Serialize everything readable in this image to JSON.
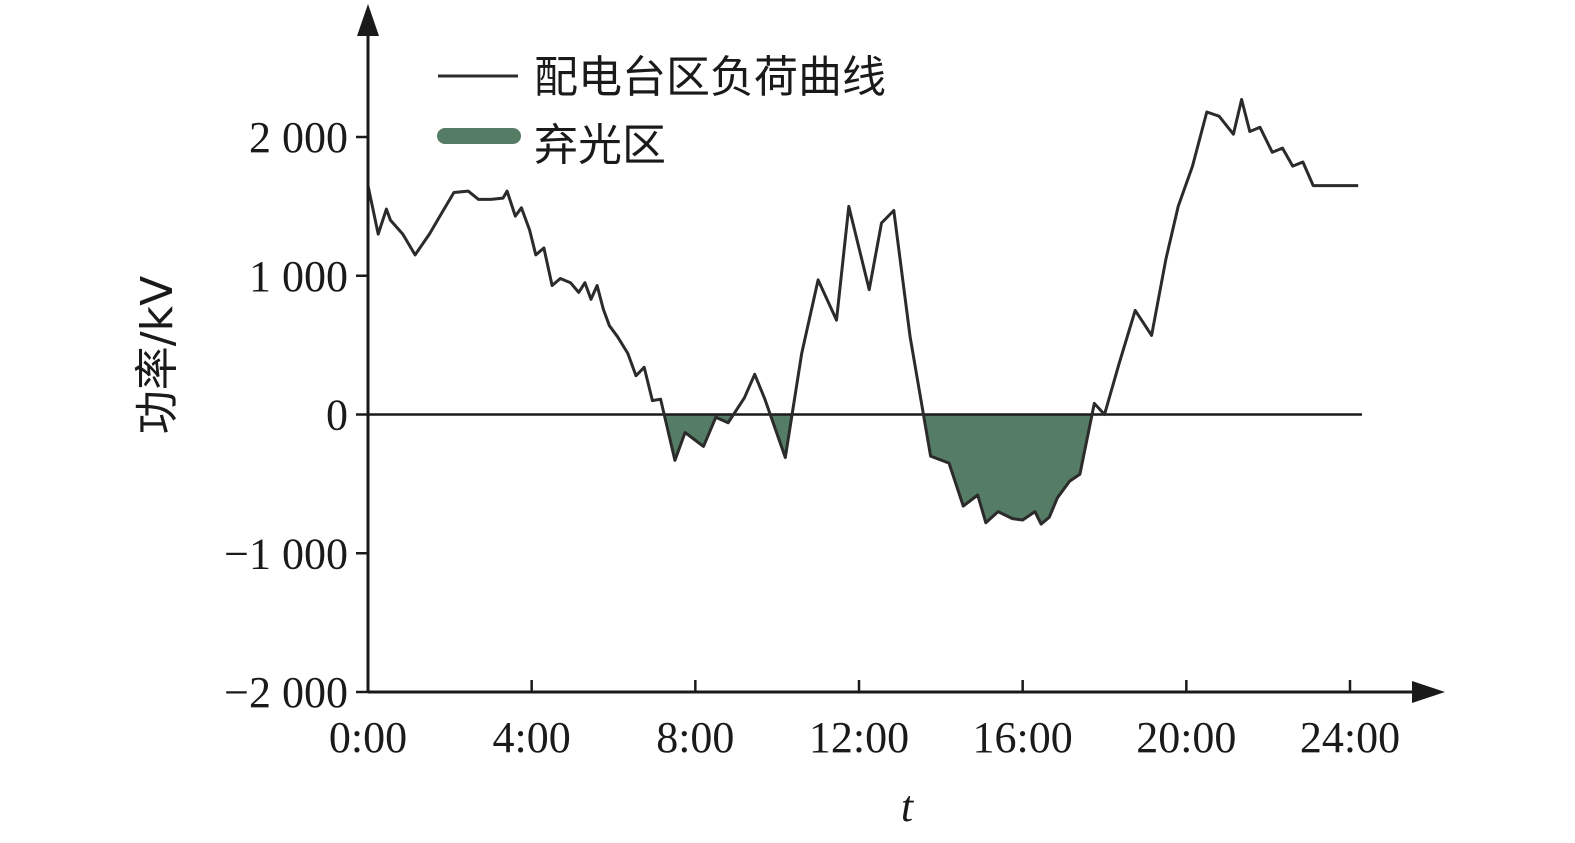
{
  "chart_data": {
    "type": "line",
    "xlabel": "t",
    "ylabel": "功率/kV",
    "xlim": [
      0,
      24
    ],
    "ylim": [
      -2000,
      2000
    ],
    "x_ticks": [
      0,
      4,
      8,
      12,
      16,
      20,
      24
    ],
    "x_tick_labels": [
      "0:00",
      "4:00",
      "8:00",
      "12:00",
      "16:00",
      "20:00",
      "24:00"
    ],
    "y_ticks": [
      -2000,
      -1000,
      0,
      1000,
      2000
    ],
    "y_tick_labels": [
      "−2 000",
      "−1 000",
      "0",
      "1 000",
      "2 000"
    ],
    "grid": false,
    "legend_position": "top-left",
    "zero_line": true,
    "colors": {
      "line": "#2b2b2b",
      "fill": "#557d66",
      "axis": "#1a1a1a"
    },
    "series": [
      {
        "name": "配电台区负荷曲线",
        "kind": "line",
        "x": [
          0.0,
          0.25,
          0.45,
          0.55,
          0.85,
          1.15,
          1.5,
          1.8,
          2.1,
          2.45,
          2.7,
          3.0,
          3.3,
          3.4,
          3.6,
          3.75,
          3.95,
          4.1,
          4.3,
          4.5,
          4.7,
          4.95,
          5.15,
          5.3,
          5.45,
          5.6,
          5.75,
          5.9,
          6.1,
          6.35,
          6.55,
          6.75,
          6.95,
          7.15,
          7.5,
          7.75,
          8.2,
          8.5,
          8.8,
          9.2,
          9.45,
          9.7,
          10.2,
          10.6,
          11.0,
          11.45,
          11.75,
          12.25,
          12.55,
          12.85,
          13.25,
          13.75,
          14.2,
          14.55,
          14.9,
          15.1,
          15.4,
          15.75,
          16.0,
          16.3,
          16.45,
          16.65,
          16.85,
          17.15,
          17.4,
          17.75,
          18.0,
          18.35,
          18.75,
          19.15,
          19.5,
          19.8,
          20.15,
          20.5,
          20.8,
          21.15,
          21.35,
          21.55,
          21.8,
          22.1,
          22.35,
          22.6,
          22.85,
          23.1,
          23.4,
          23.6,
          23.8,
          24.2
        ],
        "values": [
          1650,
          1300,
          1480,
          1400,
          1300,
          1150,
          1300,
          1450,
          1600,
          1610,
          1550,
          1550,
          1560,
          1610,
          1430,
          1490,
          1330,
          1150,
          1200,
          930,
          980,
          950,
          880,
          950,
          830,
          930,
          760,
          640,
          560,
          440,
          280,
          340,
          100,
          110,
          -330,
          -130,
          -230,
          -20,
          -60,
          120,
          290,
          110,
          -310,
          440,
          970,
          680,
          1500,
          900,
          1380,
          1470,
          560,
          -300,
          -350,
          -660,
          -580,
          -780,
          -700,
          -750,
          -760,
          -700,
          -790,
          -740,
          -600,
          -480,
          -430,
          80,
          0,
          360,
          750,
          570,
          1120,
          1500,
          1790,
          2180,
          2150,
          2020,
          2270,
          2040,
          2070,
          1890,
          1920,
          1790,
          1820,
          1650,
          1650,
          1650,
          1650,
          1650
        ]
      },
      {
        "name": "弃光区",
        "kind": "area"
      }
    ]
  }
}
